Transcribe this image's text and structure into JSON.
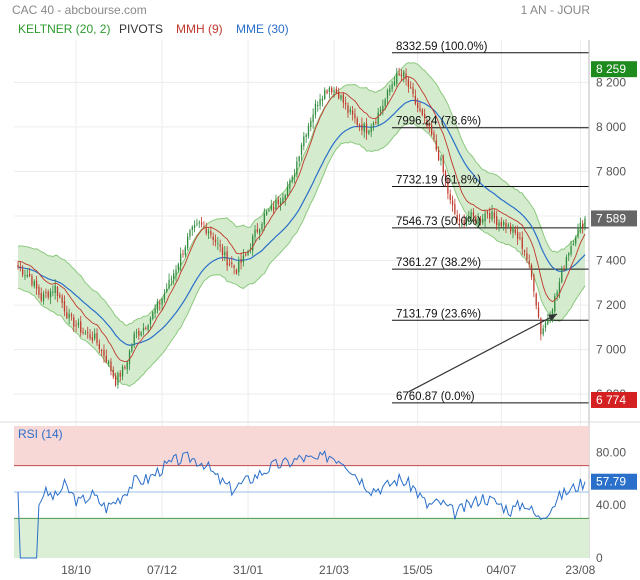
{
  "header": {
    "title": "CAC 40 - abcbourse.com",
    "period": "1 AN - JOUR"
  },
  "legend": [
    {
      "label": "KELTNER (20, 2)",
      "color": "#2e9a2e"
    },
    {
      "label": "PIVOTS",
      "color": "#333333"
    },
    {
      "label": "MMH (9)",
      "color": "#c0392b"
    },
    {
      "label": "MME (30)",
      "color": "#2a6fc9"
    }
  ],
  "colors": {
    "up_candle": "#2e8b3c",
    "down_candle": "#c0392b",
    "keltner_fill": "#cfe9c9",
    "keltner_line": "#8cc97f",
    "mme": "#2a6fc9",
    "mmh": "#c0392b",
    "rsi_line": "#2a6fc9",
    "rsi_over_zone": "#f8d7d7",
    "rsi_under_zone": "#dbefd6",
    "badge_high": "#1e8b1e",
    "badge_last": "#666666",
    "badge_low": "#d42020"
  },
  "chart_data": [
    {
      "type": "candlestick",
      "title": "CAC 40",
      "x_ticks": [
        "18/10",
        "07/12",
        "31/01",
        "21/03",
        "15/05",
        "04/07",
        "23/08"
      ],
      "y_ticks": [
        6800,
        7000,
        7200,
        7400,
        7600,
        7800,
        8000,
        8200
      ],
      "y_tick_labels": [
        "6 800",
        "7 000",
        "7 200",
        "7 400",
        "7 600",
        "7 800",
        "8 000",
        "8 200"
      ],
      "ylim": [
        6720,
        8390
      ],
      "close_path": {
        "points": [
          {
            "i": 0,
            "v": 7370
          },
          {
            "i": 5,
            "v": 7330
          },
          {
            "i": 10,
            "v": 7230
          },
          {
            "i": 16,
            "v": 7280
          },
          {
            "i": 22,
            "v": 7140
          },
          {
            "i": 28,
            "v": 7080
          },
          {
            "i": 33,
            "v": 7050
          },
          {
            "i": 38,
            "v": 6960
          },
          {
            "i": 42,
            "v": 6860
          },
          {
            "i": 46,
            "v": 6920
          },
          {
            "i": 50,
            "v": 7060
          },
          {
            "i": 54,
            "v": 7100
          },
          {
            "i": 58,
            "v": 7160
          },
          {
            "i": 62,
            "v": 7230
          },
          {
            "i": 66,
            "v": 7320
          },
          {
            "i": 70,
            "v": 7420
          },
          {
            "i": 74,
            "v": 7520
          },
          {
            "i": 78,
            "v": 7560
          },
          {
            "i": 82,
            "v": 7540
          },
          {
            "i": 86,
            "v": 7470
          },
          {
            "i": 90,
            "v": 7400
          },
          {
            "i": 94,
            "v": 7360
          },
          {
            "i": 98,
            "v": 7420
          },
          {
            "i": 102,
            "v": 7520
          },
          {
            "i": 106,
            "v": 7600
          },
          {
            "i": 110,
            "v": 7640
          },
          {
            "i": 114,
            "v": 7700
          },
          {
            "i": 118,
            "v": 7760
          },
          {
            "i": 122,
            "v": 7930
          },
          {
            "i": 126,
            "v": 8040
          },
          {
            "i": 130,
            "v": 8140
          },
          {
            "i": 134,
            "v": 8180
          },
          {
            "i": 138,
            "v": 8150
          },
          {
            "i": 142,
            "v": 8070
          },
          {
            "i": 146,
            "v": 8020
          },
          {
            "i": 150,
            "v": 7990
          },
          {
            "i": 154,
            "v": 8040
          },
          {
            "i": 158,
            "v": 8120
          },
          {
            "i": 162,
            "v": 8220
          },
          {
            "i": 166,
            "v": 8230
          },
          {
            "i": 170,
            "v": 8130
          },
          {
            "i": 174,
            "v": 8040
          },
          {
            "i": 178,
            "v": 7960
          },
          {
            "i": 182,
            "v": 7840
          },
          {
            "i": 186,
            "v": 7660
          },
          {
            "i": 190,
            "v": 7560
          },
          {
            "i": 194,
            "v": 7600
          },
          {
            "i": 198,
            "v": 7580
          },
          {
            "i": 202,
            "v": 7620
          },
          {
            "i": 206,
            "v": 7580
          },
          {
            "i": 210,
            "v": 7560
          },
          {
            "i": 214,
            "v": 7520
          },
          {
            "i": 218,
            "v": 7450
          },
          {
            "i": 222,
            "v": 7280
          },
          {
            "i": 225,
            "v": 7080
          },
          {
            "i": 228,
            "v": 7140
          },
          {
            "i": 232,
            "v": 7260
          },
          {
            "i": 236,
            "v": 7420
          },
          {
            "i": 240,
            "v": 7520
          },
          {
            "i": 244,
            "v": 7589
          }
        ],
        "count": 245
      },
      "fibonacci_pivots": [
        {
          "label": "8332.59 (100.0%)",
          "value": 8332.59
        },
        {
          "label": "7996.24 (78.6%)",
          "value": 7996.24
        },
        {
          "label": "7732.19 (61.8%)",
          "value": 7732.19
        },
        {
          "label": "7546.73 (50.0%)",
          "value": 7546.73
        },
        {
          "label": "7361.27 (38.2%)",
          "value": 7361.27
        },
        {
          "label": "7131.79 (23.6%)",
          "value": 7131.79
        },
        {
          "label": "6760.87 (0.0%)",
          "value": 6760.87
        }
      ],
      "badges": [
        {
          "label": "8 259",
          "value": 8259,
          "role": "high"
        },
        {
          "label": "7 589",
          "value": 7589,
          "role": "last"
        },
        {
          "label": "6 774",
          "value": 6774,
          "role": "low"
        }
      ],
      "annotation": {
        "type": "arrow",
        "from": {
          "i": 168,
          "v": 6810
        },
        "to": {
          "i": 232,
          "v": 7160
        }
      }
    },
    {
      "type": "line",
      "title": "RSI (14)",
      "y_ticks": [
        0,
        40,
        80
      ],
      "y_tick_labels": [
        "0",
        "40.00",
        "80.00"
      ],
      "ylim": [
        0,
        100
      ],
      "overbought": 70,
      "oversold": 30,
      "mid": 50,
      "last_value": 57.79,
      "last_label": "57.79",
      "series_points": [
        {
          "i": 0,
          "v": 50
        },
        {
          "i": 1,
          "v": 0
        },
        {
          "i": 8,
          "v": 0
        },
        {
          "i": 9,
          "v": 40
        },
        {
          "i": 11,
          "v": 50
        },
        {
          "i": 16,
          "v": 46
        },
        {
          "i": 20,
          "v": 55
        },
        {
          "i": 26,
          "v": 42
        },
        {
          "i": 32,
          "v": 48
        },
        {
          "i": 38,
          "v": 38
        },
        {
          "i": 44,
          "v": 46
        },
        {
          "i": 50,
          "v": 58
        },
        {
          "i": 56,
          "v": 60
        },
        {
          "i": 62,
          "v": 68
        },
        {
          "i": 68,
          "v": 74
        },
        {
          "i": 74,
          "v": 76
        },
        {
          "i": 80,
          "v": 72
        },
        {
          "i": 86,
          "v": 60
        },
        {
          "i": 92,
          "v": 52
        },
        {
          "i": 98,
          "v": 58
        },
        {
          "i": 104,
          "v": 64
        },
        {
          "i": 110,
          "v": 70
        },
        {
          "i": 116,
          "v": 72
        },
        {
          "i": 122,
          "v": 76
        },
        {
          "i": 128,
          "v": 74
        },
        {
          "i": 134,
          "v": 78
        },
        {
          "i": 140,
          "v": 74
        },
        {
          "i": 146,
          "v": 62
        },
        {
          "i": 152,
          "v": 52
        },
        {
          "i": 158,
          "v": 54
        },
        {
          "i": 164,
          "v": 60
        },
        {
          "i": 170,
          "v": 54
        },
        {
          "i": 176,
          "v": 40
        },
        {
          "i": 182,
          "v": 42
        },
        {
          "i": 188,
          "v": 34
        },
        {
          "i": 194,
          "v": 40
        },
        {
          "i": 200,
          "v": 46
        },
        {
          "i": 206,
          "v": 42
        },
        {
          "i": 212,
          "v": 36
        },
        {
          "i": 218,
          "v": 42
        },
        {
          "i": 224,
          "v": 30
        },
        {
          "i": 228,
          "v": 36
        },
        {
          "i": 234,
          "v": 48
        },
        {
          "i": 240,
          "v": 54
        },
        {
          "i": 244,
          "v": 57.79
        }
      ]
    }
  ]
}
